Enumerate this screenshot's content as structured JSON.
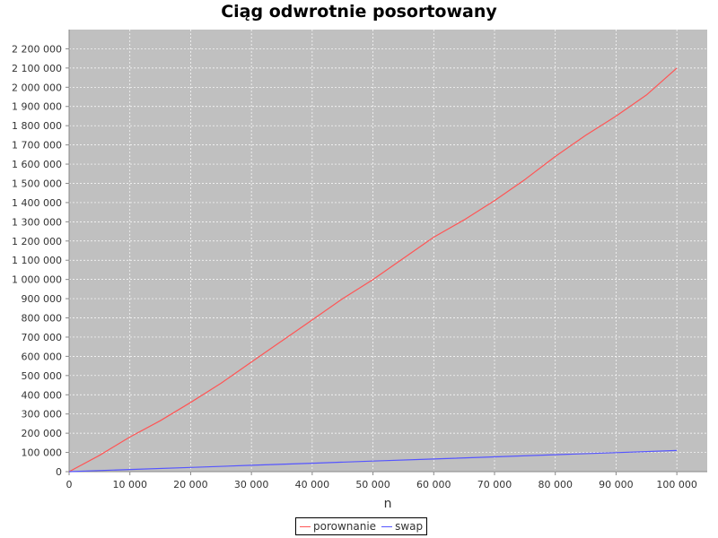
{
  "chart_data": {
    "type": "line",
    "title": "Ciąg odwrotnie posortowany",
    "xlabel": "n",
    "ylabel": "",
    "xlim": [
      0,
      105000
    ],
    "ylim": [
      0,
      2300000
    ],
    "x_ticks": [
      "0",
      "10 000",
      "20 000",
      "30 000",
      "40 000",
      "50 000",
      "60 000",
      "70 000",
      "80 000",
      "90 000",
      "100 000"
    ],
    "y_ticks": [
      "0",
      "100 000",
      "200 000",
      "300 000",
      "400 000",
      "500 000",
      "600 000",
      "700 000",
      "800 000",
      "900 000",
      "1 000 000",
      "1 100 000",
      "1 200 000",
      "1 300 000",
      "1 400 000",
      "1 500 000",
      "1 600 000",
      "1 700 000",
      "1 800 000",
      "1 900 000",
      "2 000 000",
      "2 100 000",
      "2 200 000"
    ],
    "grid": true,
    "legend_position": "bottom",
    "series": [
      {
        "name": "porownanie",
        "color": "#ff5555",
        "x": [
          0,
          5000,
          10000,
          15000,
          20000,
          25000,
          30000,
          35000,
          40000,
          45000,
          50000,
          55000,
          60000,
          65000,
          70000,
          75000,
          80000,
          85000,
          90000,
          95000,
          100000
        ],
        "values": [
          0,
          85000,
          180000,
          265000,
          360000,
          460000,
          570000,
          680000,
          790000,
          900000,
          1000000,
          1110000,
          1220000,
          1310000,
          1410000,
          1520000,
          1640000,
          1750000,
          1850000,
          1960000,
          2100000
        ]
      },
      {
        "name": "swap",
        "color": "#5555ff",
        "x": [
          0,
          10000,
          20000,
          30000,
          40000,
          50000,
          60000,
          70000,
          80000,
          90000,
          100000
        ],
        "values": [
          0,
          11000,
          22000,
          33000,
          44000,
          55000,
          66000,
          77000,
          88000,
          99000,
          110000
        ]
      }
    ]
  }
}
